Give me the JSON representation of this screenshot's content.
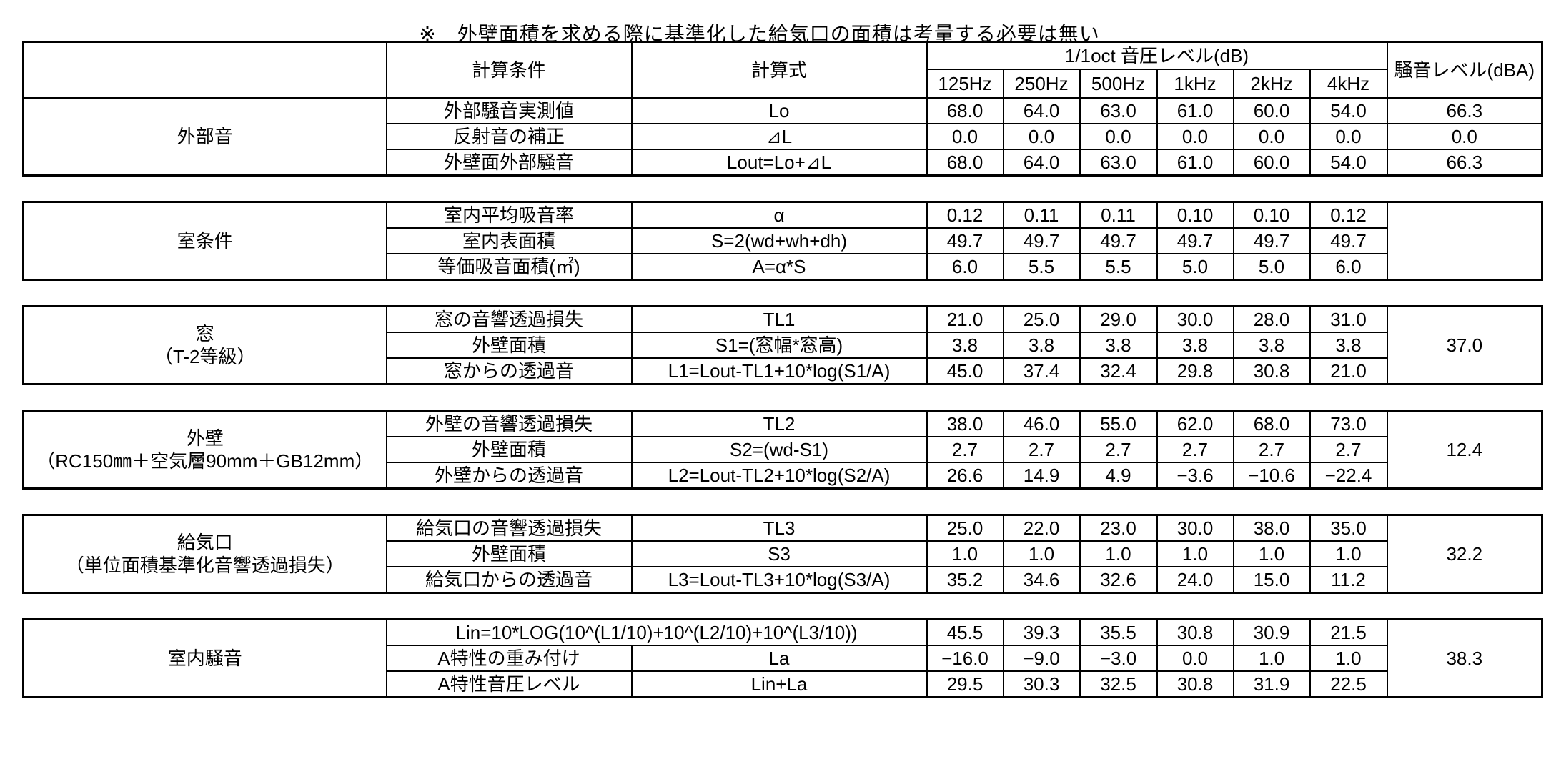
{
  "page": {
    "background": "#ffffff",
    "text_color": "#000000",
    "border_color": "#000000"
  },
  "header": {
    "condition": "計算条件",
    "formula": "計算式",
    "band_group": "1/1oct 音圧レベル(dB)",
    "bands": [
      "125Hz",
      "250Hz",
      "500Hz",
      "1kHz",
      "2kHz",
      "4kHz"
    ],
    "noise_level": "騒音レベル(dBA)"
  },
  "blocks": [
    {
      "label_lines": [
        "外部音"
      ],
      "dba_mode": "per_row",
      "rows": [
        {
          "condition": "外部騒音実測値",
          "formula": "Lo",
          "values": [
            "68.0",
            "64.0",
            "63.0",
            "61.0",
            "60.0",
            "54.0"
          ],
          "dba": "66.3"
        },
        {
          "condition": "反射音の補正",
          "formula": "⊿L",
          "values": [
            "0.0",
            "0.0",
            "0.0",
            "0.0",
            "0.0",
            "0.0"
          ],
          "dba": "0.0"
        },
        {
          "condition": "外壁面外部騒音",
          "formula": "Lout=Lo+⊿L",
          "values": [
            "68.0",
            "64.0",
            "63.0",
            "61.0",
            "60.0",
            "54.0"
          ],
          "dba": "66.3"
        }
      ]
    },
    {
      "label_lines": [
        "室条件"
      ],
      "dba_mode": "merged",
      "dba": "",
      "rows": [
        {
          "condition": "室内平均吸音率",
          "formula": "α",
          "values": [
            "0.12",
            "0.11",
            "0.11",
            "0.10",
            "0.10",
            "0.12"
          ]
        },
        {
          "condition": "室内表面積",
          "formula": "S=2(wd+wh+dh)",
          "values": [
            "49.7",
            "49.7",
            "49.7",
            "49.7",
            "49.7",
            "49.7"
          ]
        },
        {
          "condition": "等価吸音面積(㎡)",
          "formula": "A=α*S",
          "values": [
            "6.0",
            "5.5",
            "5.5",
            "5.0",
            "5.0",
            "6.0"
          ]
        }
      ]
    },
    {
      "label_lines": [
        "窓",
        "（T-2等級）"
      ],
      "dba_mode": "merged",
      "dba": "37.0",
      "rows": [
        {
          "condition": "窓の音響透過損失",
          "formula": "TL1",
          "values": [
            "21.0",
            "25.0",
            "29.0",
            "30.0",
            "28.0",
            "31.0"
          ]
        },
        {
          "condition": "外壁面積",
          "formula": "S1=(窓幅*窓高)",
          "values": [
            "3.8",
            "3.8",
            "3.8",
            "3.8",
            "3.8",
            "3.8"
          ]
        },
        {
          "condition": "窓からの透過音",
          "formula": "L1=Lout-TL1+10*log(S1/A)",
          "values": [
            "45.0",
            "37.4",
            "32.4",
            "29.8",
            "30.8",
            "21.0"
          ]
        }
      ]
    },
    {
      "label_lines": [
        "外壁",
        "（RC150㎜＋空気層90mm＋GB12mm）"
      ],
      "dba_mode": "merged",
      "dba": "12.4",
      "rows": [
        {
          "condition": "外壁の音響透過損失",
          "formula": "TL2",
          "values": [
            "38.0",
            "46.0",
            "55.0",
            "62.0",
            "68.0",
            "73.0"
          ]
        },
        {
          "condition": "外壁面積",
          "formula": "S2=(wd-S1)",
          "values": [
            "2.7",
            "2.7",
            "2.7",
            "2.7",
            "2.7",
            "2.7"
          ]
        },
        {
          "condition": "外壁からの透過音",
          "formula": "L2=Lout-TL2+10*log(S2/A)",
          "values": [
            "26.6",
            "14.9",
            "4.9",
            "−3.6",
            "−10.6",
            "−22.4"
          ]
        }
      ]
    },
    {
      "label_lines": [
        "給気口",
        "（単位面積基準化音響透過損失）"
      ],
      "dba_mode": "merged",
      "dba": "32.2",
      "rows": [
        {
          "condition": "給気口の音響透過損失",
          "formula": "TL3",
          "values": [
            "25.0",
            "22.0",
            "23.0",
            "30.0",
            "38.0",
            "35.0"
          ]
        },
        {
          "condition": "外壁面積",
          "formula": "S3",
          "values": [
            "1.0",
            "1.0",
            "1.0",
            "1.0",
            "1.0",
            "1.0"
          ]
        },
        {
          "condition": "給気口からの透過音",
          "formula": "L3=Lout-TL3+10*log(S3/A)",
          "values": [
            "35.2",
            "34.6",
            "32.6",
            "24.0",
            "15.0",
            "11.2"
          ]
        }
      ]
    },
    {
      "label_lines": [
        "室内騒音"
      ],
      "dba_mode": "merged",
      "dba": "38.3",
      "rows": [
        {
          "merged": true,
          "formula": "Lin=10*LOG(10^(L1/10)+10^(L2/10)+10^(L3/10))",
          "values": [
            "45.5",
            "39.3",
            "35.5",
            "30.8",
            "30.9",
            "21.5"
          ]
        },
        {
          "condition": "A特性の重み付け",
          "formula": "La",
          "values": [
            "−16.0",
            "−9.0",
            "−3.0",
            "0.0",
            "1.0",
            "1.0"
          ]
        },
        {
          "condition": "A特性音圧レベル",
          "formula": "Lin+La",
          "values": [
            "29.5",
            "30.3",
            "32.5",
            "30.8",
            "31.9",
            "22.5"
          ]
        }
      ]
    }
  ],
  "footnote": "※　外壁面積を求める際に基準化した給気口の面積は考量する必要は無い"
}
